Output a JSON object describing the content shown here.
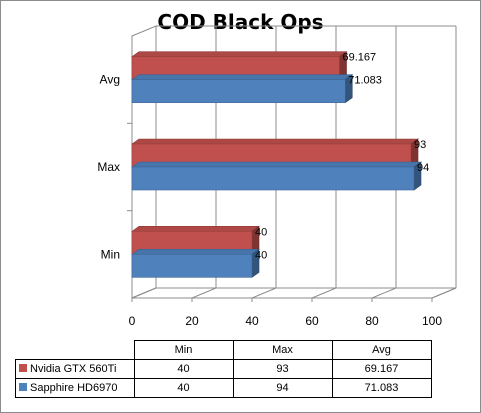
{
  "chart_data": {
    "type": "bar",
    "orientation": "horizontal",
    "title": "COD Black Ops",
    "categories": [
      "Min",
      "Max",
      "Avg"
    ],
    "series": [
      {
        "name": "Nvidia GTX 560Ti",
        "values": [
          40,
          93,
          69.167
        ],
        "labels": [
          "40",
          "93",
          "69.167"
        ],
        "color": "#c0504d"
      },
      {
        "name": "Sapphire HD6970",
        "values": [
          40,
          94,
          71.083
        ],
        "labels": [
          "40",
          "94",
          "71.083"
        ],
        "color": "#4f81bd"
      }
    ],
    "xlim": [
      0,
      100
    ],
    "xticks": [
      "0",
      "20",
      "40",
      "60",
      "80",
      "100"
    ],
    "grid": true,
    "style": "3d",
    "legend": "data-table"
  },
  "data_table": {
    "columns": [
      "Min",
      "Max",
      "Avg"
    ],
    "rows": [
      {
        "name": "Nvidia GTX 560Ti",
        "cells": [
          "40",
          "93",
          "69.167"
        ]
      },
      {
        "name": "Sapphire HD6970",
        "cells": [
          "40",
          "94",
          "71.083"
        ]
      }
    ]
  }
}
